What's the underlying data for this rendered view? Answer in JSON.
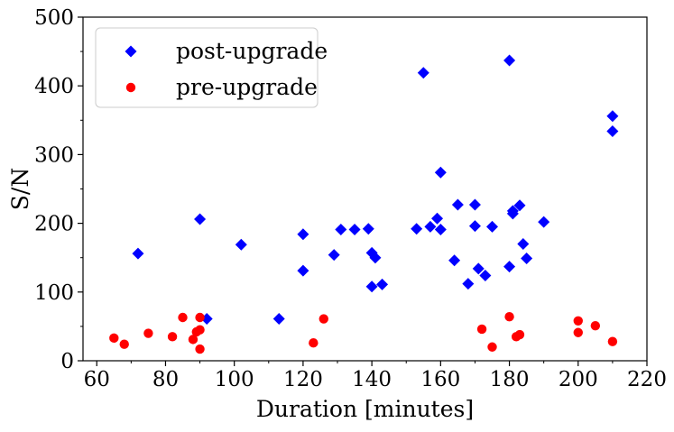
{
  "chart_data": {
    "type": "scatter",
    "title": "",
    "xlabel": "Duration [minutes]",
    "ylabel": "S/N",
    "xlim": [
      56,
      220
    ],
    "ylim": [
      0,
      500
    ],
    "x_ticks": [
      60,
      80,
      100,
      120,
      140,
      160,
      180,
      200,
      220
    ],
    "y_ticks": [
      0,
      100,
      200,
      300,
      400,
      500
    ],
    "x_tick_labels": [
      "60",
      "80",
      "100",
      "120",
      "140",
      "160",
      "180",
      "200",
      "220"
    ],
    "y_tick_labels": [
      "0",
      "100",
      "200",
      "300",
      "400",
      "500"
    ],
    "legend_position": "top-left",
    "series": [
      {
        "name": "post-upgrade",
        "marker": "diamond",
        "color": "#0000ff",
        "points": [
          [
            72,
            156
          ],
          [
            90,
            206
          ],
          [
            92,
            61
          ],
          [
            102,
            169
          ],
          [
            113,
            61
          ],
          [
            120,
            184
          ],
          [
            120,
            131
          ],
          [
            129,
            154
          ],
          [
            131,
            191
          ],
          [
            135,
            191
          ],
          [
            139,
            192
          ],
          [
            140,
            157
          ],
          [
            140,
            108
          ],
          [
            141,
            150
          ],
          [
            143,
            111
          ],
          [
            153,
            192
          ],
          [
            155,
            419
          ],
          [
            157,
            195
          ],
          [
            159,
            207
          ],
          [
            160,
            274
          ],
          [
            160,
            191
          ],
          [
            164,
            146
          ],
          [
            165,
            227
          ],
          [
            168,
            112
          ],
          [
            170,
            227
          ],
          [
            170,
            196
          ],
          [
            171,
            134
          ],
          [
            173,
            124
          ],
          [
            175,
            195
          ],
          [
            180,
            437
          ],
          [
            180,
            137
          ],
          [
            181,
            218
          ],
          [
            181,
            214
          ],
          [
            183,
            226
          ],
          [
            184,
            170
          ],
          [
            185,
            149
          ],
          [
            190,
            202
          ],
          [
            210,
            356
          ],
          [
            210,
            334
          ]
        ]
      },
      {
        "name": "pre-upgrade",
        "marker": "circle",
        "color": "#ff0000",
        "points": [
          [
            65,
            33
          ],
          [
            68,
            24
          ],
          [
            75,
            40
          ],
          [
            82,
            35
          ],
          [
            85,
            63
          ],
          [
            88,
            31
          ],
          [
            89,
            42
          ],
          [
            90,
            63
          ],
          [
            90,
            45
          ],
          [
            90,
            17
          ],
          [
            123,
            26
          ],
          [
            126,
            61
          ],
          [
            172,
            46
          ],
          [
            175,
            20
          ],
          [
            180,
            64
          ],
          [
            182,
            35
          ],
          [
            183,
            38
          ],
          [
            200,
            58
          ],
          [
            200,
            41
          ],
          [
            205,
            51
          ],
          [
            210,
            28
          ]
        ]
      }
    ]
  }
}
